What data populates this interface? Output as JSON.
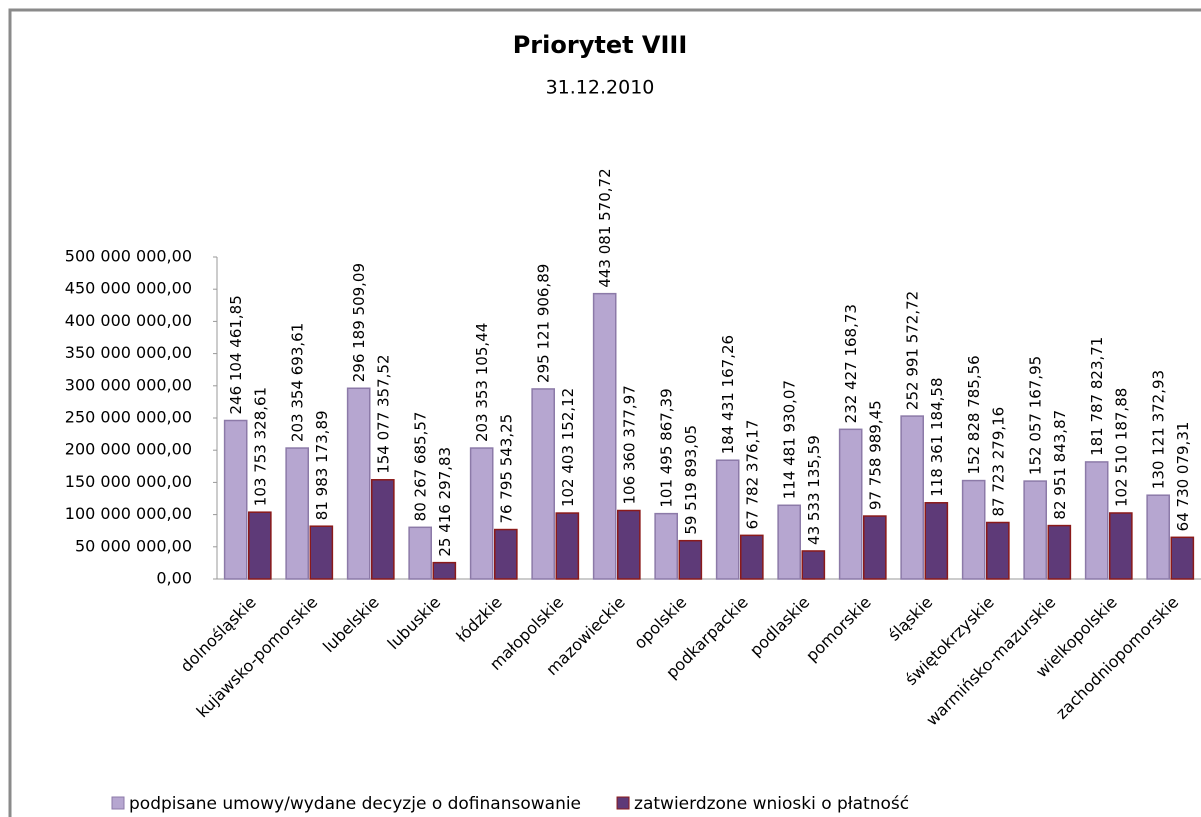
{
  "chart_data": {
    "type": "bar",
    "title": "Priorytet VIII",
    "subtitle": "31.12.2010",
    "categories": [
      "dolnośląskie",
      "kujawsko-pomorskie",
      "lubelskie",
      "lubuskie",
      "łódzkie",
      "małopolskie",
      "mazowieckie",
      "opolskie",
      "podkarpackie",
      "podlaskie",
      "pomorskie",
      "śląskie",
      "świętokrzyskie",
      "warmińsko-mazurskie",
      "wielkopolskie",
      "zachodniopomorskie"
    ],
    "series": [
      {
        "name": "podpisane umowy/wydane decyzje o dofinansowanie",
        "color": "#b6a6d0",
        "values": [
          246104461.85,
          203354693.61,
          296189509.09,
          80267685.57,
          203353105.44,
          295121906.89,
          443081570.72,
          101495867.39,
          184431167.26,
          114481930.07,
          232427168.73,
          252991572.72,
          152828785.56,
          152057167.95,
          181787823.71,
          130121372.93
        ],
        "value_labels": [
          "246 104 461,85",
          "203 354 693,61",
          "296 189 509,09",
          "80 267 685,57",
          "203 353 105,44",
          "295 121 906,89",
          "443 081 570,72",
          "101 495 867,39",
          "184 431 167,26",
          "114 481 930,07",
          "232 427 168,73",
          "252 991 572,72",
          "152 828 785,56",
          "152 057 167,95",
          "181 787 823,71",
          "130 121 372,93"
        ]
      },
      {
        "name": "zatwierdzone wnioski o płatność",
        "color": "#5e3a78",
        "values": [
          103753328.61,
          81983173.89,
          154077357.52,
          25416297.83,
          76795543.25,
          102403152.12,
          106360377.97,
          59519893.05,
          67782376.17,
          43533135.59,
          97758989.45,
          118361184.58,
          87723279.16,
          82951843.87,
          102510187.88,
          64730079.31
        ],
        "value_labels": [
          "103 753 328,61",
          "81 983 173,89",
          "154 077 357,52",
          "25 416 297,83",
          "76 795 543,25",
          "102 403 152,12",
          "106 360 377,97",
          "59 519 893,05",
          "67 782 376,17",
          "43 533 135,59",
          "97 758 989,45",
          "118 361 184,58",
          "87 723 279,16",
          "82 951 843,87",
          "102 510 187,88",
          "64 730 079,31"
        ]
      }
    ],
    "ylim": [
      0,
      500000000
    ],
    "yticks": [
      {
        "value": 0,
        "label": "0,00"
      },
      {
        "value": 50000000,
        "label": "50 000 000,00"
      },
      {
        "value": 100000000,
        "label": "100 000 000,00"
      },
      {
        "value": 150000000,
        "label": "150 000 000,00"
      },
      {
        "value": 200000000,
        "label": "200 000 000,00"
      },
      {
        "value": 250000000,
        "label": "250 000 000,00"
      },
      {
        "value": 300000000,
        "label": "300 000 000,00"
      },
      {
        "value": 350000000,
        "label": "350 000 000,00"
      },
      {
        "value": 400000000,
        "label": "400 000 000,00"
      },
      {
        "value": 450000000,
        "label": "450 000 000,00"
      },
      {
        "value": 500000000,
        "label": "500 000 000,00"
      }
    ],
    "grid": false,
    "legend": "bottom"
  }
}
